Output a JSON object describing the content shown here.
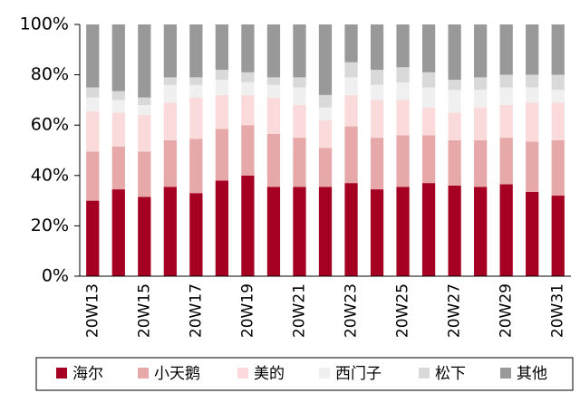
{
  "chart_data": {
    "type": "stacked_bar",
    "categories": [
      "20W13",
      null,
      "20W15",
      null,
      "20W17",
      null,
      "20W19",
      null,
      "20W21",
      null,
      "20W23",
      null,
      "20W25",
      null,
      "20W27",
      null,
      "20W29",
      null,
      "20W31"
    ],
    "series": [
      {
        "name": "海尔",
        "color": "#a50021",
        "values": [
          30,
          34.5,
          31.5,
          35.5,
          33,
          38,
          40,
          35.5,
          35.5,
          35.5,
          37,
          34.5,
          35.5,
          37,
          36,
          35.5,
          36.5,
          33.5,
          32
        ]
      },
      {
        "name": "小天鹅",
        "color": "#e6a8a8",
        "values": [
          19.5,
          17,
          18,
          18.5,
          21.5,
          20.5,
          20,
          21,
          19.5,
          15.5,
          22.5,
          20.5,
          20.5,
          19,
          18,
          18.5,
          18.5,
          20,
          22
        ]
      },
      {
        "name": "美的",
        "color": "#fadada",
        "values": [
          16,
          13.5,
          14.5,
          15,
          16.5,
          13.5,
          12,
          14.5,
          13,
          11,
          12.5,
          15,
          14,
          11,
          11,
          13,
          13,
          15.5,
          15
        ]
      },
      {
        "name": "西门子",
        "color": "#f0f0f0",
        "values": [
          5.5,
          5,
          4,
          7,
          5,
          6,
          5,
          5,
          7,
          5,
          7,
          6,
          7,
          8,
          9,
          7,
          7,
          6,
          5
        ]
      },
      {
        "name": "松下",
        "color": "#d9d9d9",
        "values": [
          4,
          3.5,
          3,
          3,
          3,
          4,
          4,
          3,
          4,
          5,
          6,
          6,
          6,
          6,
          4,
          5,
          5,
          5,
          6
        ]
      },
      {
        "name": "其他",
        "color": "#999999",
        "values": [
          25,
          26.5,
          29,
          21,
          21,
          18,
          19,
          21,
          21,
          28,
          15,
          18,
          17,
          19,
          22,
          21,
          20,
          20,
          20
        ]
      }
    ],
    "ylim": [
      0,
      100
    ],
    "yticks": [
      {
        "value": 0,
        "label": "0%"
      },
      {
        "value": 20,
        "label": "20%"
      },
      {
        "value": 40,
        "label": "40%"
      },
      {
        "value": 60,
        "label": "60%"
      },
      {
        "value": 80,
        "label": "80%"
      },
      {
        "value": 100,
        "label": "100%"
      }
    ],
    "legend": "bottom"
  }
}
